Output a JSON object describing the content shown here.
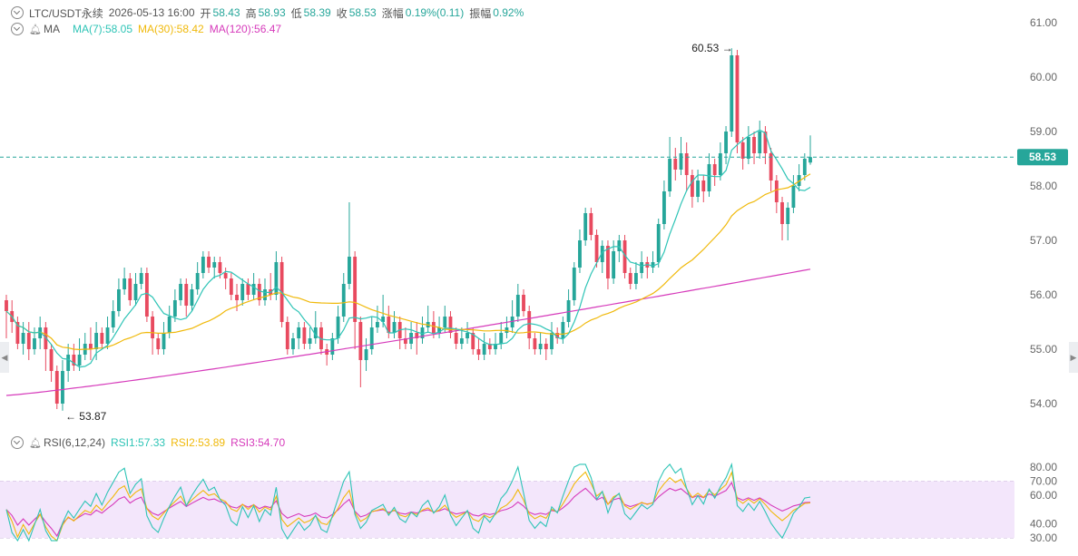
{
  "header": {
    "symbol": "LTC/USDT永续",
    "datetime": "2026-05-13 16:00",
    "open_label": "开",
    "open": "58.43",
    "high_label": "高",
    "high": "58.93",
    "low_label": "低",
    "low": "58.39",
    "close_label": "收",
    "close": "58.53",
    "change_label": "涨幅",
    "change": "0.19%(0.11)",
    "amplitude_label": "振幅",
    "amplitude": "0.92%"
  },
  "ma_legend": {
    "label": "MA",
    "ma7": "MA(7):58.05",
    "ma30": "MA(30):58.42",
    "ma120": "MA(120):56.47"
  },
  "rsi_legend": {
    "label": "RSI(6,12,24)",
    "rsi1": "RSI1:57.33",
    "rsi2": "RSI2:53.89",
    "rsi3": "RSI3:54.70"
  },
  "colors": {
    "up": "#26a69a",
    "down": "#e84a5f",
    "ma7": "#2ec4b6",
    "ma30": "#f0b90b",
    "ma120": "#d63bbb",
    "rsi1": "#2ec4b6",
    "rsi2": "#f0b90b",
    "rsi3": "#d63bbb",
    "rsi_band": "#f3e6fb",
    "last_price_bg": "#26a69a"
  },
  "icons": [
    "chevron-down-icon",
    "bell-icon",
    "arrow-left-icon",
    "arrow-right-icon"
  ],
  "chart_data": [
    {
      "type": "candlestick",
      "y_ticks": [
        "61.00",
        "60.00",
        "59.00",
        "58.00",
        "57.00",
        "56.00",
        "55.00",
        "54.00"
      ],
      "ylim": [
        53.7,
        61.3
      ],
      "last_price": "58.53",
      "high_annotation": "60.53",
      "low_annotation": "53.87",
      "candles": [
        [
          55.9,
          55.7,
          56.0,
          55.2
        ],
        [
          55.7,
          55.5,
          55.9,
          55.3
        ],
        [
          55.5,
          55.1,
          55.6,
          55.0
        ],
        [
          55.1,
          55.3,
          55.5,
          54.9
        ],
        [
          55.3,
          55.0,
          55.5,
          54.8
        ],
        [
          55.0,
          55.2,
          55.4,
          54.9
        ],
        [
          55.2,
          55.4,
          55.6,
          55.0
        ],
        [
          55.4,
          55.0,
          55.5,
          54.6
        ],
        [
          55.0,
          54.6,
          55.1,
          54.4
        ],
        [
          54.6,
          54.0,
          54.7,
          53.9
        ],
        [
          54.0,
          54.6,
          54.8,
          53.87
        ],
        [
          54.6,
          54.9,
          55.1,
          54.4
        ],
        [
          54.9,
          54.7,
          55.1,
          54.6
        ],
        [
          54.7,
          54.9,
          55.2,
          54.6
        ],
        [
          54.9,
          55.1,
          55.3,
          54.8
        ],
        [
          55.1,
          55.0,
          55.4,
          54.8
        ],
        [
          55.0,
          55.3,
          55.5,
          54.8
        ],
        [
          55.3,
          55.1,
          55.4,
          55.0
        ],
        [
          55.1,
          55.4,
          55.6,
          55.0
        ],
        [
          55.4,
          55.7,
          55.9,
          55.3
        ],
        [
          55.7,
          56.1,
          56.3,
          55.6
        ],
        [
          56.1,
          56.3,
          56.5,
          56.0
        ],
        [
          56.3,
          55.9,
          56.4,
          55.8
        ],
        [
          55.9,
          56.2,
          56.4,
          55.8
        ],
        [
          56.2,
          56.4,
          56.5,
          56.1
        ],
        [
          56.4,
          55.6,
          56.5,
          55.5
        ],
        [
          55.6,
          55.2,
          55.7,
          54.9
        ],
        [
          55.2,
          55.0,
          55.3,
          54.9
        ],
        [
          55.0,
          55.3,
          55.5,
          54.9
        ],
        [
          55.3,
          55.6,
          55.8,
          55.2
        ],
        [
          55.6,
          55.9,
          56.1,
          55.5
        ],
        [
          55.9,
          56.2,
          56.3,
          55.8
        ],
        [
          56.2,
          55.8,
          56.3,
          55.6
        ],
        [
          55.8,
          56.1,
          56.2,
          55.7
        ],
        [
          56.1,
          56.4,
          56.6,
          56.0
        ],
        [
          56.4,
          56.7,
          56.8,
          56.3
        ],
        [
          56.7,
          56.5,
          56.8,
          56.4
        ],
        [
          56.5,
          56.6,
          56.7,
          56.3
        ],
        [
          56.6,
          56.4,
          56.7,
          56.3
        ],
        [
          56.4,
          56.3,
          56.5,
          56.1
        ],
        [
          56.3,
          56.0,
          56.4,
          55.9
        ],
        [
          56.0,
          55.9,
          56.2,
          55.7
        ],
        [
          55.9,
          56.2,
          56.3,
          55.8
        ],
        [
          56.2,
          56.0,
          56.3,
          55.9
        ],
        [
          56.0,
          56.2,
          56.4,
          55.9
        ],
        [
          56.2,
          55.9,
          56.3,
          55.8
        ],
        [
          55.9,
          56.1,
          56.3,
          55.8
        ],
        [
          56.1,
          56.0,
          56.4,
          55.9
        ],
        [
          56.0,
          56.6,
          56.8,
          55.9
        ],
        [
          56.6,
          55.5,
          56.7,
          55.4
        ],
        [
          55.5,
          55.0,
          55.6,
          54.9
        ],
        [
          55.0,
          55.2,
          55.3,
          54.9
        ],
        [
          55.2,
          55.4,
          55.5,
          55.0
        ],
        [
          55.4,
          55.1,
          55.5,
          55.0
        ],
        [
          55.1,
          55.2,
          55.4,
          55.0
        ],
        [
          55.2,
          55.4,
          55.7,
          55.1
        ],
        [
          55.4,
          55.0,
          55.5,
          54.9
        ],
        [
          55.0,
          54.9,
          55.1,
          54.7
        ],
        [
          54.9,
          55.2,
          55.3,
          54.8
        ],
        [
          55.2,
          55.6,
          55.8,
          55.1
        ],
        [
          55.6,
          56.2,
          56.4,
          55.5
        ],
        [
          56.2,
          56.7,
          57.7,
          56.1
        ],
        [
          56.7,
          55.5,
          56.8,
          55.0
        ],
        [
          55.5,
          54.8,
          55.6,
          54.3
        ],
        [
          54.8,
          55.0,
          55.2,
          54.6
        ],
        [
          55.0,
          55.4,
          55.6,
          54.9
        ],
        [
          55.4,
          55.5,
          55.8,
          55.3
        ],
        [
          55.5,
          55.6,
          56.0,
          55.4
        ],
        [
          55.6,
          55.3,
          55.8,
          55.2
        ],
        [
          55.3,
          55.5,
          55.7,
          55.2
        ],
        [
          55.5,
          55.2,
          55.6,
          55.0
        ],
        [
          55.2,
          55.1,
          55.4,
          55.0
        ],
        [
          55.1,
          55.3,
          55.5,
          55.0
        ],
        [
          55.3,
          55.2,
          55.5,
          54.9
        ],
        [
          55.2,
          55.4,
          55.6,
          55.1
        ],
        [
          55.4,
          55.5,
          55.8,
          55.3
        ],
        [
          55.5,
          55.3,
          55.7,
          55.2
        ],
        [
          55.3,
          55.4,
          55.6,
          55.2
        ],
        [
          55.4,
          55.6,
          55.8,
          55.3
        ],
        [
          55.6,
          55.3,
          55.7,
          55.2
        ],
        [
          55.3,
          55.1,
          55.4,
          55.0
        ],
        [
          55.1,
          55.2,
          55.4,
          55.0
        ],
        [
          55.2,
          55.3,
          55.5,
          55.1
        ],
        [
          55.3,
          55.0,
          55.4,
          54.9
        ],
        [
          55.0,
          54.9,
          55.2,
          54.8
        ],
        [
          54.9,
          55.1,
          55.3,
          54.8
        ],
        [
          55.1,
          55.0,
          55.2,
          54.9
        ],
        [
          55.0,
          55.1,
          55.3,
          54.9
        ],
        [
          55.1,
          55.3,
          55.5,
          55.0
        ],
        [
          55.3,
          55.4,
          55.6,
          55.2
        ],
        [
          55.4,
          55.6,
          55.9,
          55.3
        ],
        [
          55.6,
          56.0,
          56.2,
          55.5
        ],
        [
          56.0,
          55.7,
          56.1,
          55.6
        ],
        [
          55.7,
          55.2,
          55.8,
          55.0
        ],
        [
          55.2,
          55.0,
          55.3,
          54.9
        ],
        [
          55.0,
          55.1,
          55.3,
          54.9
        ],
        [
          55.1,
          55.0,
          55.2,
          54.8
        ],
        [
          55.0,
          55.3,
          55.5,
          54.9
        ],
        [
          55.3,
          55.2,
          55.4,
          55.1
        ],
        [
          55.2,
          55.5,
          55.6,
          55.1
        ],
        [
          55.5,
          55.9,
          56.1,
          55.4
        ],
        [
          55.9,
          56.5,
          56.6,
          55.8
        ],
        [
          56.5,
          57.0,
          57.2,
          56.4
        ],
        [
          57.0,
          57.5,
          57.6,
          56.9
        ],
        [
          57.5,
          57.1,
          57.6,
          57.0
        ],
        [
          57.1,
          56.6,
          57.2,
          56.5
        ],
        [
          56.6,
          56.9,
          57.0,
          56.4
        ],
        [
          56.9,
          56.3,
          57.0,
          56.1
        ],
        [
          56.3,
          56.8,
          57.0,
          56.2
        ],
        [
          56.8,
          57.0,
          57.1,
          56.6
        ],
        [
          57.0,
          56.4,
          57.1,
          56.3
        ],
        [
          56.4,
          56.2,
          56.5,
          56.1
        ],
        [
          56.2,
          56.4,
          56.6,
          56.1
        ],
        [
          56.4,
          56.6,
          56.8,
          56.3
        ],
        [
          56.6,
          56.5,
          56.7,
          56.3
        ],
        [
          56.5,
          56.6,
          56.8,
          56.4
        ],
        [
          56.6,
          57.3,
          57.4,
          56.5
        ],
        [
          57.3,
          57.9,
          58.1,
          57.2
        ],
        [
          57.9,
          58.5,
          58.9,
          57.8
        ],
        [
          58.5,
          58.3,
          58.7,
          58.1
        ],
        [
          58.3,
          58.6,
          58.9,
          58.2
        ],
        [
          58.6,
          58.2,
          58.8,
          57.9
        ],
        [
          58.2,
          57.8,
          58.3,
          57.6
        ],
        [
          57.8,
          58.1,
          58.3,
          57.7
        ],
        [
          58.1,
          57.9,
          58.2,
          57.7
        ],
        [
          57.9,
          58.4,
          58.6,
          57.8
        ],
        [
          58.4,
          58.2,
          58.5,
          58.0
        ],
        [
          58.2,
          58.6,
          58.8,
          58.1
        ],
        [
          58.6,
          59.0,
          59.1,
          58.4
        ],
        [
          59.0,
          60.4,
          60.53,
          58.9
        ],
        [
          60.4,
          58.8,
          60.5,
          58.6
        ],
        [
          58.8,
          58.5,
          58.9,
          58.3
        ],
        [
          58.5,
          58.9,
          59.1,
          58.4
        ],
        [
          58.9,
          58.6,
          59.0,
          58.4
        ],
        [
          58.6,
          59.0,
          59.2,
          58.5
        ],
        [
          59.0,
          58.6,
          59.1,
          58.4
        ],
        [
          58.6,
          58.1,
          58.7,
          57.9
        ],
        [
          58.1,
          57.7,
          58.2,
          57.5
        ],
        [
          57.7,
          57.3,
          57.8,
          57.0
        ],
        [
          57.3,
          57.6,
          57.7,
          57.0
        ],
        [
          57.6,
          58.0,
          58.2,
          57.5
        ],
        [
          58.0,
          58.2,
          58.4,
          57.9
        ],
        [
          58.2,
          58.5,
          58.6,
          58.1
        ],
        [
          58.43,
          58.53,
          58.93,
          58.39
        ]
      ]
    },
    {
      "type": "line",
      "y_ticks": [
        "80.00",
        "70.00",
        "60.00",
        "40.00",
        "30.00"
      ],
      "ylim": [
        27,
        83
      ],
      "band": [
        30,
        70
      ]
    }
  ]
}
